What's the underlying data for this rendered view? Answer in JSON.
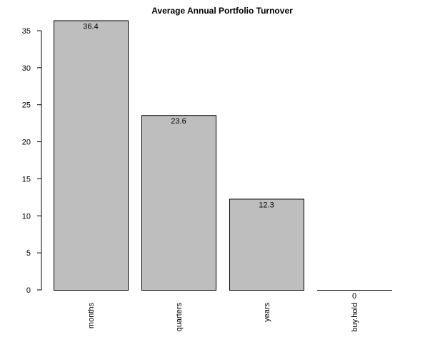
{
  "chart_data": {
    "type": "bar",
    "title": "Average Annual Portfolio Turnover",
    "xlabel": "",
    "ylabel": "",
    "categories": [
      "months",
      "quarters",
      "years",
      "buy.hold"
    ],
    "values": [
      36.4,
      23.6,
      12.3,
      0
    ],
    "data_labels": [
      "36.4",
      "23.6",
      "12.3",
      "0"
    ],
    "ylim": [
      0,
      35
    ],
    "yticks": [
      0,
      5,
      10,
      15,
      20,
      25,
      30,
      35
    ],
    "bar_color": "#bebebe",
    "bar_edge_color": "#000000",
    "grid": false,
    "legend": "none"
  }
}
